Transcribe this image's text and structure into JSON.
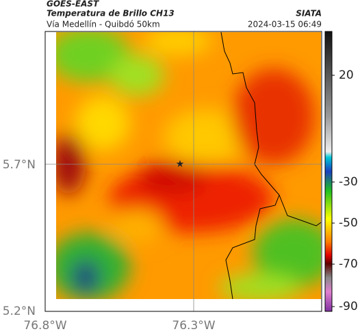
{
  "header": {
    "satellite": "GOES-EAST",
    "product": "Temperatura de Brillo CH13",
    "region": "Vía Medellín - Quibdó 50km",
    "source": "SIATA",
    "timestamp": "2024-03-15 06:49"
  },
  "axes": {
    "lat_labels": [
      "5.7°N",
      "5.2°N"
    ],
    "lon_labels": [
      "76.8°W",
      "76.3°W"
    ]
  },
  "colorbar": {
    "tick_labels": [
      "20",
      "-30",
      "-50",
      "-70",
      "-90"
    ]
  }
}
